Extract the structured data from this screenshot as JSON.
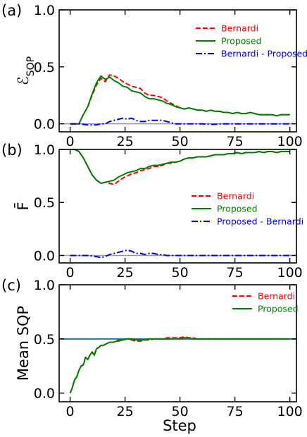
{
  "colors": {
    "bernardi": "#ff0000",
    "proposed": "#008000",
    "difference": "#0000ff",
    "zero_ref": "#999999",
    "half_ref": "#1f77b4"
  },
  "xlabel": "Step",
  "chart_data": [
    {
      "type": "line",
      "panel_label": "(a)",
      "ylabel_main": "ℰ",
      "ylabel_sub": "SOP",
      "xlim": [
        -5,
        103
      ],
      "ylim": [
        -0.07,
        1.0
      ],
      "x_ticks": [
        0,
        25,
        50,
        75,
        100
      ],
      "y_ticks": [
        0.0,
        0.5,
        1.0
      ],
      "y_tick_labels": [
        "0.0",
        "0.5",
        "1.0"
      ],
      "x_tick_labels": [
        "0",
        "25",
        "50",
        "75",
        "100"
      ],
      "reference_line": {
        "y": 0.0,
        "color": "#999999"
      },
      "legend_position": "top-right",
      "series": [
        {
          "name": "Bernardi",
          "style": "dashed",
          "color": "#ff0000",
          "x": [
            0,
            2,
            4,
            6,
            8,
            10,
            12,
            14,
            16,
            18,
            20,
            22,
            24,
            26,
            28,
            30,
            32,
            34,
            36,
            38,
            40,
            42,
            44,
            46,
            48,
            50,
            52,
            54,
            56,
            58,
            60,
            62,
            64,
            66,
            68,
            70,
            72,
            74,
            76,
            78,
            80,
            82,
            84,
            86,
            88,
            90,
            92,
            94,
            96,
            98,
            100
          ],
          "y": [
            0.0,
            0.0,
            0.0,
            0.08,
            0.15,
            0.25,
            0.34,
            0.4,
            0.37,
            0.43,
            0.42,
            0.4,
            0.37,
            0.35,
            0.33,
            0.32,
            0.31,
            0.27,
            0.25,
            0.25,
            0.24,
            0.23,
            0.2,
            0.18,
            0.16,
            0.14,
            0.13,
            0.14,
            0.13,
            0.12,
            0.12,
            0.11,
            0.12,
            0.11,
            0.11,
            0.1,
            0.1,
            0.09,
            0.1,
            0.09,
            0.09,
            0.1,
            0.09,
            0.08,
            0.08,
            0.08,
            0.08,
            0.07,
            0.08,
            0.08,
            0.08
          ]
        },
        {
          "name": "Proposed",
          "style": "solid",
          "color": "#008000",
          "x": [
            0,
            2,
            4,
            6,
            8,
            10,
            12,
            14,
            16,
            18,
            20,
            22,
            24,
            26,
            28,
            30,
            32,
            34,
            36,
            38,
            40,
            42,
            44,
            46,
            48,
            50,
            52,
            54,
            56,
            58,
            60,
            62,
            64,
            66,
            68,
            70,
            72,
            74,
            76,
            78,
            80,
            82,
            84,
            86,
            88,
            90,
            92,
            94,
            96,
            98,
            100
          ],
          "y": [
            0.0,
            0.0,
            0.0,
            0.08,
            0.15,
            0.26,
            0.36,
            0.42,
            0.39,
            0.41,
            0.38,
            0.36,
            0.33,
            0.32,
            0.29,
            0.28,
            0.27,
            0.24,
            0.22,
            0.22,
            0.21,
            0.2,
            0.18,
            0.17,
            0.15,
            0.14,
            0.13,
            0.14,
            0.13,
            0.12,
            0.12,
            0.11,
            0.12,
            0.11,
            0.11,
            0.1,
            0.1,
            0.09,
            0.1,
            0.09,
            0.09,
            0.1,
            0.09,
            0.08,
            0.08,
            0.08,
            0.08,
            0.07,
            0.08,
            0.08,
            0.08
          ]
        },
        {
          "name": "Bernardi - Proposed",
          "style": "dashdot",
          "color": "#0000ff",
          "x": [
            0,
            4,
            8,
            12,
            14,
            16,
            18,
            20,
            22,
            24,
            26,
            28,
            30,
            32,
            34,
            36,
            38,
            40,
            42,
            44,
            46,
            48,
            50,
            55,
            60,
            65,
            70,
            75,
            80,
            85,
            90,
            95,
            100
          ],
          "y": [
            0.0,
            0.0,
            -0.01,
            -0.01,
            0.0,
            0.0,
            0.02,
            0.03,
            0.04,
            0.05,
            0.04,
            0.05,
            0.03,
            0.02,
            0.02,
            0.03,
            0.03,
            0.03,
            0.03,
            0.02,
            0.01,
            0.0,
            0.0,
            0.0,
            0.0,
            -0.005,
            0.0,
            0.0,
            0.0,
            0.0,
            0.0,
            0.0,
            0.0
          ]
        }
      ]
    },
    {
      "type": "line",
      "panel_label": "(b)",
      "ylabel_main": "F̄",
      "xlim": [
        -5,
        103
      ],
      "ylim": [
        -0.07,
        1.0
      ],
      "x_ticks": [
        0,
        25,
        50,
        75,
        100
      ],
      "y_ticks": [
        0.0,
        0.5,
        1.0
      ],
      "y_tick_labels": [
        "0.0",
        "0.5",
        "1.0"
      ],
      "x_tick_labels": [
        "0",
        "25",
        "50",
        "75",
        "100"
      ],
      "reference_line": {
        "y": 0.0,
        "color": "#999999"
      },
      "legend_position": "lower-right",
      "series": [
        {
          "name": "Bernardi",
          "style": "dashed",
          "color": "#ff0000",
          "x": [
            0,
            2,
            4,
            6,
            8,
            10,
            12,
            14,
            16,
            18,
            20,
            22,
            24,
            26,
            28,
            30,
            32,
            34,
            36,
            38,
            40,
            42,
            44,
            46,
            48,
            50,
            52,
            54,
            56,
            58,
            60,
            62,
            64,
            66,
            68,
            70,
            72,
            74,
            76,
            78,
            80,
            82,
            84,
            86,
            88,
            90,
            92,
            94,
            96,
            98,
            100
          ],
          "y": [
            1.0,
            1.0,
            0.98,
            0.92,
            0.84,
            0.76,
            0.71,
            0.68,
            0.69,
            0.68,
            0.67,
            0.7,
            0.73,
            0.75,
            0.77,
            0.78,
            0.8,
            0.81,
            0.82,
            0.84,
            0.84,
            0.85,
            0.87,
            0.87,
            0.88,
            0.89,
            0.91,
            0.92,
            0.92,
            0.93,
            0.93,
            0.93,
            0.94,
            0.95,
            0.95,
            0.95,
            0.96,
            0.96,
            0.97,
            0.96,
            0.97,
            0.97,
            0.97,
            0.98,
            0.97,
            0.98,
            0.98,
            0.97,
            0.98,
            0.98,
            0.98
          ]
        },
        {
          "name": "Proposed",
          "style": "solid",
          "color": "#008000",
          "x": [
            0,
            2,
            4,
            6,
            8,
            10,
            12,
            14,
            16,
            18,
            20,
            22,
            24,
            26,
            28,
            30,
            32,
            34,
            36,
            38,
            40,
            42,
            44,
            46,
            48,
            50,
            52,
            54,
            56,
            58,
            60,
            62,
            64,
            66,
            68,
            70,
            72,
            74,
            76,
            78,
            80,
            82,
            84,
            86,
            88,
            90,
            92,
            94,
            96,
            98,
            100
          ],
          "y": [
            1.0,
            1.0,
            0.98,
            0.92,
            0.84,
            0.76,
            0.71,
            0.68,
            0.69,
            0.7,
            0.71,
            0.74,
            0.76,
            0.78,
            0.79,
            0.8,
            0.82,
            0.82,
            0.84,
            0.85,
            0.85,
            0.86,
            0.87,
            0.88,
            0.88,
            0.89,
            0.91,
            0.92,
            0.92,
            0.93,
            0.93,
            0.93,
            0.94,
            0.95,
            0.95,
            0.95,
            0.96,
            0.96,
            0.97,
            0.96,
            0.97,
            0.97,
            0.97,
            0.98,
            0.97,
            0.98,
            0.98,
            0.97,
            0.98,
            0.98,
            0.98
          ]
        },
        {
          "name": "Proposed - Bernardi",
          "style": "dashdot",
          "color": "#0000ff",
          "x": [
            0,
            4,
            8,
            12,
            14,
            16,
            18,
            20,
            22,
            24,
            26,
            28,
            30,
            32,
            34,
            36,
            38,
            40,
            42,
            44,
            46,
            48,
            50,
            55,
            60,
            65,
            70,
            75,
            80,
            85,
            90,
            95,
            100
          ],
          "y": [
            0.0,
            0.0,
            0.0,
            -0.01,
            -0.02,
            -0.01,
            0.01,
            0.02,
            0.03,
            0.04,
            0.05,
            0.04,
            0.02,
            0.02,
            0.01,
            0.02,
            0.02,
            0.01,
            0.01,
            0.0,
            0.0,
            0.0,
            0.0,
            0.0,
            0.0,
            0.0,
            0.0,
            0.0,
            0.0,
            0.0,
            0.0,
            0.0,
            0.0
          ]
        }
      ]
    },
    {
      "type": "line",
      "panel_label": "(c)",
      "ylabel_main": "Mean SQP",
      "xlim": [
        -5,
        103
      ],
      "ylim": [
        -0.08,
        1.0
      ],
      "x_ticks": [
        0,
        25,
        50,
        75,
        100
      ],
      "y_ticks": [
        0.0,
        0.5,
        1.0
      ],
      "y_tick_labels": [
        "0.0",
        "0.5",
        "1.0"
      ],
      "x_tick_labels": [
        "0",
        "25",
        "50",
        "75",
        "100"
      ],
      "reference_line": {
        "y": 0.5,
        "color": "#1f77b4"
      },
      "legend_position": "top-right",
      "series": [
        {
          "name": "Bernardi",
          "style": "dashed",
          "color": "#ff0000",
          "x": [
            0,
            1,
            2,
            3,
            4,
            5,
            6,
            7,
            8,
            9,
            10,
            11,
            12,
            13,
            14,
            15,
            16,
            18,
            20,
            22,
            24,
            26,
            28,
            30,
            32,
            34,
            36,
            38,
            40,
            42,
            44,
            46,
            48,
            50,
            52,
            54,
            56,
            58,
            60,
            65,
            70,
            75,
            80,
            85,
            90,
            95,
            100
          ],
          "y": [
            0.0,
            0.05,
            0.12,
            0.15,
            0.21,
            0.25,
            0.26,
            0.33,
            0.31,
            0.35,
            0.38,
            0.35,
            0.41,
            0.42,
            0.44,
            0.44,
            0.45,
            0.47,
            0.47,
            0.48,
            0.49,
            0.5,
            0.49,
            0.48,
            0.48,
            0.49,
            0.49,
            0.5,
            0.5,
            0.5,
            0.51,
            0.51,
            0.51,
            0.51,
            0.52,
            0.51,
            0.51,
            0.5,
            0.5,
            0.5,
            0.5,
            0.5,
            0.5,
            0.5,
            0.5,
            0.5,
            0.5
          ]
        },
        {
          "name": "Proposed",
          "style": "solid",
          "color": "#008000",
          "x": [
            0,
            1,
            2,
            3,
            4,
            5,
            6,
            7,
            8,
            9,
            10,
            11,
            12,
            13,
            14,
            15,
            16,
            18,
            20,
            22,
            24,
            26,
            28,
            30,
            32,
            34,
            36,
            38,
            40,
            42,
            44,
            46,
            48,
            50,
            52,
            54,
            56,
            58,
            60,
            65,
            70,
            75,
            80,
            85,
            90,
            95,
            100
          ],
          "y": [
            0.0,
            0.05,
            0.12,
            0.15,
            0.21,
            0.25,
            0.26,
            0.33,
            0.31,
            0.35,
            0.38,
            0.35,
            0.41,
            0.42,
            0.44,
            0.44,
            0.45,
            0.47,
            0.47,
            0.49,
            0.49,
            0.5,
            0.5,
            0.49,
            0.49,
            0.49,
            0.5,
            0.5,
            0.5,
            0.5,
            0.5,
            0.5,
            0.51,
            0.5,
            0.51,
            0.51,
            0.5,
            0.5,
            0.5,
            0.5,
            0.5,
            0.5,
            0.5,
            0.5,
            0.5,
            0.5,
            0.5
          ]
        }
      ]
    }
  ]
}
